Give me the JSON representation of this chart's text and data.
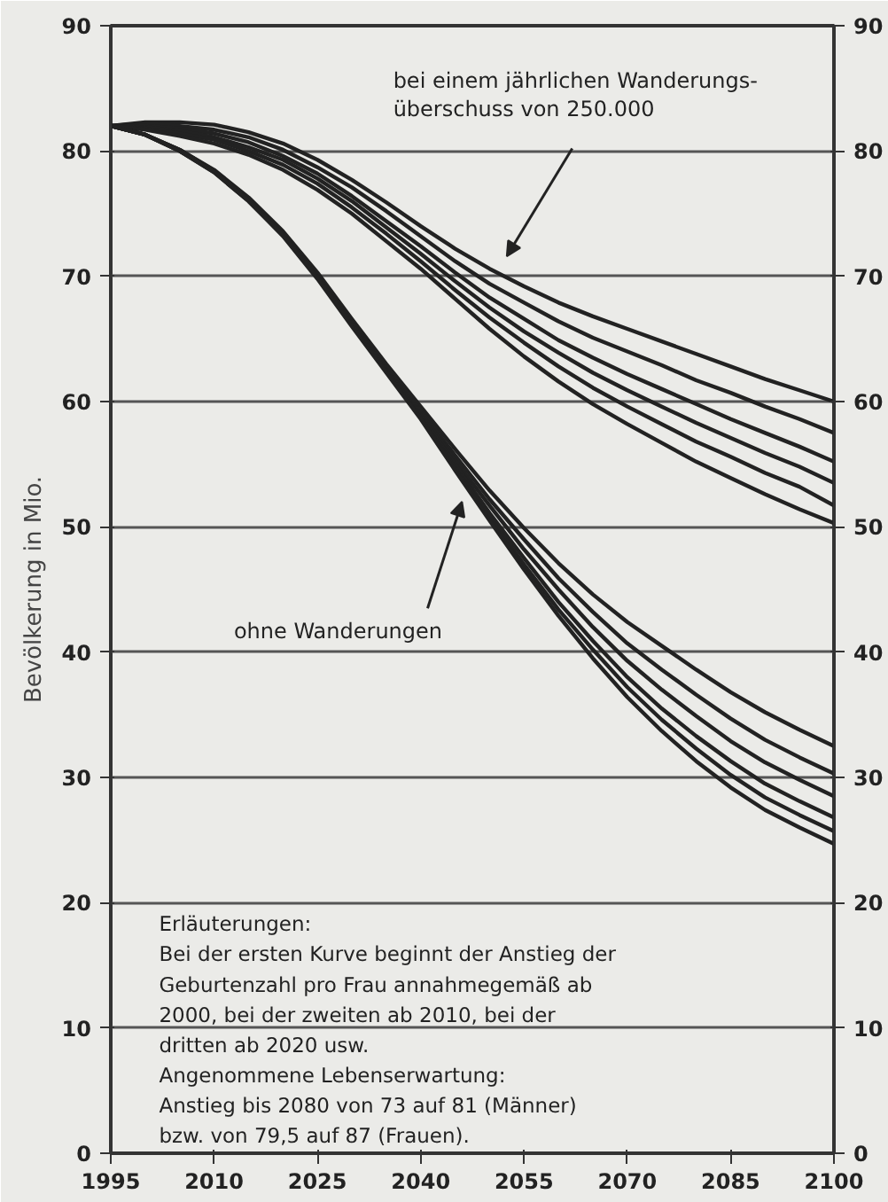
{
  "chart_data": {
    "type": "line",
    "ylabel": "Bevölkerung in Mio.",
    "x": [
      1995,
      2000,
      2005,
      2010,
      2015,
      2020,
      2025,
      2030,
      2035,
      2040,
      2045,
      2050,
      2055,
      2060,
      2065,
      2070,
      2075,
      2080,
      2085,
      2090,
      2095,
      2100
    ],
    "series": [
      {
        "color": "#222222",
        "values": [
          82,
          82.3,
          82.3,
          82.1,
          81.5,
          80.6,
          79.3,
          77.7,
          75.9,
          74.0,
          72.2,
          70.6,
          69.2,
          67.9,
          66.8,
          65.8,
          64.8,
          63.8,
          62.8,
          61.8,
          60.9,
          60.0
        ]
      },
      {
        "color": "#222222",
        "values": [
          82,
          82.2,
          82.0,
          81.7,
          81.1,
          80.1,
          78.7,
          77.1,
          75.2,
          73.2,
          71.2,
          69.4,
          67.9,
          66.4,
          65.1,
          64.0,
          62.9,
          61.7,
          60.7,
          59.6,
          58.6,
          57.5
        ]
      },
      {
        "color": "#222222",
        "values": [
          82,
          82.0,
          81.8,
          81.4,
          80.7,
          79.6,
          78.2,
          76.4,
          74.4,
          72.4,
          70.3,
          68.3,
          66.6,
          64.9,
          63.5,
          62.2,
          61.0,
          59.8,
          58.6,
          57.5,
          56.4,
          55.2
        ]
      },
      {
        "color": "#222222",
        "values": [
          82,
          81.9,
          81.6,
          81.1,
          80.3,
          79.3,
          77.8,
          76.0,
          73.9,
          71.8,
          69.6,
          67.5,
          65.6,
          63.9,
          62.3,
          60.9,
          59.6,
          58.3,
          57.1,
          55.9,
          54.8,
          53.5
        ]
      },
      {
        "color": "#222222",
        "values": [
          82,
          81.8,
          81.4,
          80.9,
          80.0,
          78.9,
          77.4,
          75.5,
          73.4,
          71.2,
          68.9,
          66.7,
          64.7,
          62.8,
          61.1,
          59.6,
          58.2,
          56.8,
          55.6,
          54.3,
          53.2,
          51.7
        ]
      },
      {
        "color": "#222222",
        "values": [
          82,
          81.7,
          81.2,
          80.6,
          79.7,
          78.5,
          76.9,
          75.0,
          72.8,
          70.6,
          68.2,
          65.8,
          63.6,
          61.6,
          59.8,
          58.2,
          56.7,
          55.2,
          53.9,
          52.6,
          51.4,
          50.3
        ]
      },
      {
        "color": "#222222",
        "values": [
          82,
          81.3,
          80.1,
          78.5,
          76.3,
          73.6,
          70.3,
          66.6,
          63.0,
          59.6,
          56.2,
          52.9,
          49.9,
          47.1,
          44.6,
          42.4,
          40.5,
          38.6,
          36.8,
          35.2,
          33.8,
          32.5
        ]
      },
      {
        "color": "#222222",
        "values": [
          82,
          81.3,
          80.1,
          78.4,
          76.2,
          73.5,
          70.2,
          66.4,
          62.8,
          59.3,
          55.7,
          52.2,
          49.0,
          45.9,
          43.2,
          40.7,
          38.6,
          36.6,
          34.7,
          33.0,
          31.6,
          30.3
        ]
      },
      {
        "color": "#222222",
        "values": [
          82,
          81.3,
          80.1,
          78.4,
          76.2,
          73.4,
          70.0,
          66.3,
          62.6,
          59.1,
          55.3,
          51.7,
          48.2,
          45.0,
          42.0,
          39.3,
          37.0,
          34.9,
          32.9,
          31.2,
          29.8,
          28.5
        ]
      },
      {
        "color": "#222222",
        "values": [
          82,
          81.3,
          80.0,
          78.4,
          76.1,
          73.3,
          69.9,
          66.2,
          62.5,
          58.9,
          55.0,
          51.1,
          47.5,
          44.0,
          40.9,
          38.0,
          35.5,
          33.3,
          31.3,
          29.5,
          28.1,
          26.8
        ]
      },
      {
        "color": "#222222",
        "values": [
          82,
          81.3,
          80.0,
          78.3,
          76.0,
          73.3,
          69.9,
          66.1,
          62.4,
          58.7,
          54.7,
          50.8,
          47.0,
          43.4,
          40.2,
          37.2,
          34.6,
          32.3,
          30.2,
          28.4,
          27.0,
          25.7
        ]
      },
      {
        "color": "#222222",
        "values": [
          82,
          81.3,
          80.0,
          78.3,
          76.0,
          73.2,
          69.8,
          66.0,
          62.3,
          58.6,
          54.5,
          50.5,
          46.6,
          42.9,
          39.5,
          36.4,
          33.7,
          31.3,
          29.2,
          27.4,
          26.0,
          24.7
        ]
      }
    ],
    "xlim": [
      1995,
      2100
    ],
    "xticks": [
      1995,
      2010,
      2025,
      2040,
      2055,
      2070,
      2085,
      2100
    ],
    "ylim": [
      0,
      90
    ],
    "yticks": [
      0,
      10,
      20,
      30,
      40,
      50,
      60,
      70,
      80,
      90
    ],
    "y2lim": [
      0,
      90
    ],
    "y2ticks": [
      0,
      10,
      20,
      30,
      40,
      50,
      60,
      70,
      80,
      90
    ],
    "grid": "y",
    "marker": "none",
    "line_style": "solid",
    "annotations": [
      "bei einem jährlichen Wanderungs-\nüberschuss von 250.000",
      "ohne Wanderungen",
      "Erläuterungen:\nBei der ersten Kurve beginnt der Anstieg der\nGeburtenzahl pro Frau annahmegemäß ab\n2000, bei der zweiten ab 2010, bei der\ndritten ab 2020 usw.\nAngenommene Lebenserwartung:\nAnstieg bis 2080 von 73 auf 81 (Männer)\nbzw. von 79,5 auf 87 (Frauen)."
    ]
  }
}
